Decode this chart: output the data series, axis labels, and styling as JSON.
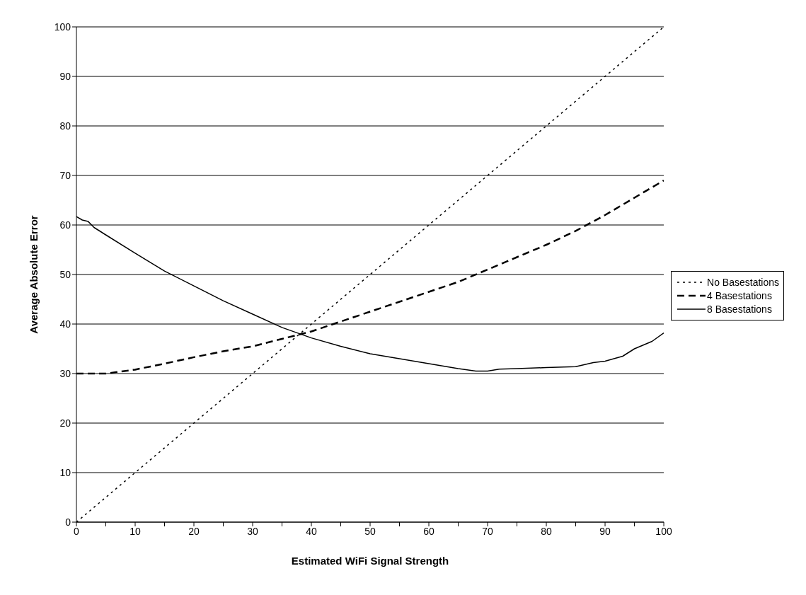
{
  "chart_data": {
    "type": "line",
    "xlabel": "Estimated WiFi Signal Strength",
    "ylabel": "Average Absolute Error",
    "xlim": [
      0,
      100
    ],
    "ylim": [
      0,
      100
    ],
    "xticks": [
      0,
      {
        "value": 5,
        "label": null
      },
      10,
      {
        "value": 15,
        "label": null
      },
      20,
      {
        "value": 25,
        "label": null
      },
      30,
      {
        "value": 35,
        "label": null
      },
      40,
      {
        "value": 45,
        "label": null
      },
      50,
      {
        "value": 55,
        "label": null
      },
      60,
      {
        "value": 65,
        "label": null
      },
      70,
      {
        "value": 75,
        "label": null
      },
      80,
      {
        "value": 85,
        "label": null
      },
      90,
      {
        "value": 95,
        "label": null
      },
      100
    ],
    "yticks": [
      0,
      10,
      20,
      30,
      40,
      50,
      60,
      70,
      80,
      90,
      100
    ],
    "grid": "y",
    "legend": "right",
    "marker": "none",
    "series": [
      {
        "name": "No Basestations",
        "color": "#000000",
        "line_style": "dotted",
        "x": [
          0,
          100
        ],
        "values": [
          0,
          100
        ]
      },
      {
        "name": "4 Basestations",
        "color": "#000000",
        "line_style": "dashed",
        "x": [
          0,
          5,
          10,
          15,
          20,
          25,
          30,
          35,
          40,
          45,
          50,
          55,
          60,
          65,
          70,
          75,
          80,
          85,
          90,
          95,
          100
        ],
        "values": [
          30,
          30,
          30.8,
          32,
          33.3,
          34.5,
          35.5,
          37,
          38.5,
          40.5,
          42.5,
          44.5,
          46.5,
          48.5,
          51,
          53.5,
          56,
          58.8,
          62,
          65.5,
          69
        ]
      },
      {
        "name": "8 Basestations",
        "color": "#000000",
        "line_style": "solid",
        "x": [
          0,
          1,
          2,
          3,
          5,
          10,
          15,
          20,
          25,
          30,
          35,
          40,
          45,
          50,
          55,
          60,
          65,
          68,
          70,
          72,
          75,
          80,
          85,
          88,
          90,
          93,
          95,
          98,
          100
        ],
        "values": [
          61.7,
          61,
          60.7,
          59.5,
          58,
          54.3,
          50.7,
          47.7,
          44.7,
          42,
          39.3,
          37.2,
          35.5,
          34,
          33,
          32,
          31,
          30.5,
          30.5,
          30.9,
          31,
          31.2,
          31.4,
          32.2,
          32.5,
          33.5,
          35,
          36.5,
          38.2
        ]
      }
    ]
  }
}
